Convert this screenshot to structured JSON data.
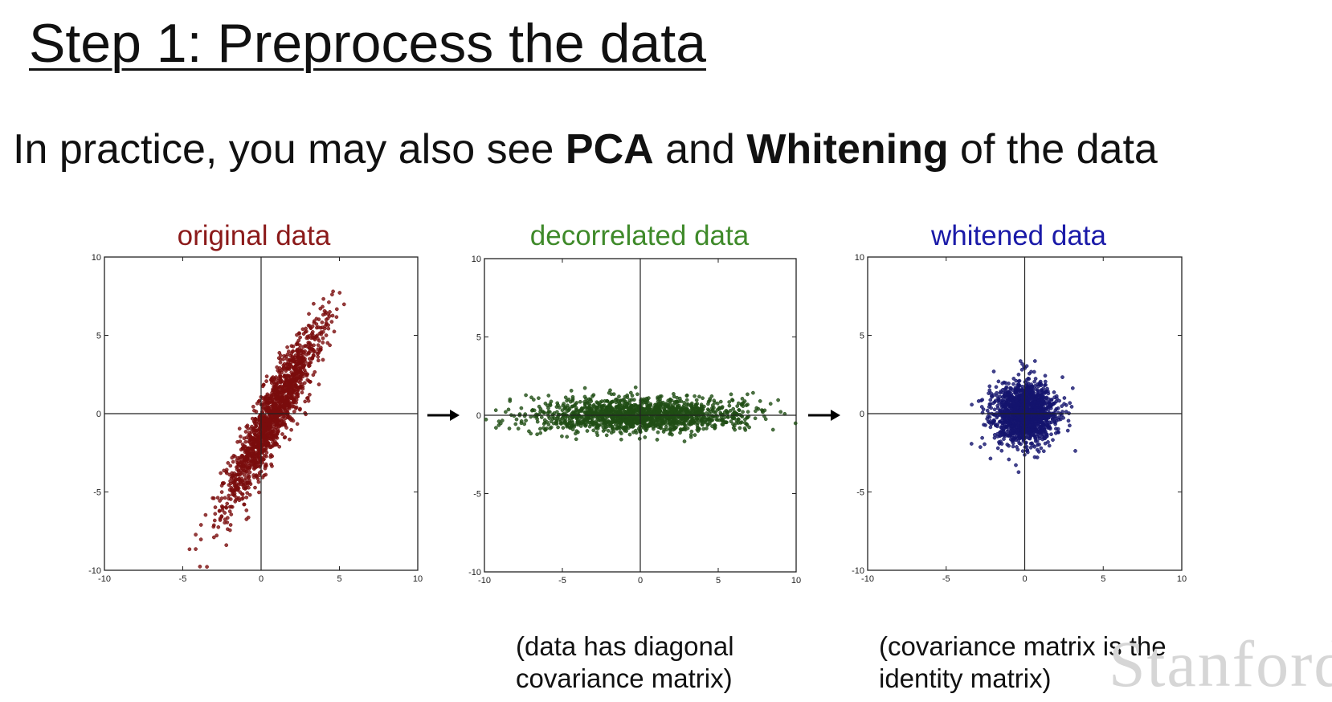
{
  "slide": {
    "title": "Step 1: Preprocess the data",
    "subtitle": {
      "prefix": "In practice, you may also see ",
      "term1": "PCA",
      "middle": " and ",
      "term2": "Whitening",
      "suffix": " of the data"
    },
    "captions": {
      "decorrelated_line1": "(data has diagonal",
      "decorrelated_line2": "covariance matrix)",
      "whitened_line1": "(covariance matrix is the",
      "whitened_line2": "identity matrix)"
    },
    "watermark": "Stanford",
    "icons": {
      "arrow": "right-arrow-icon"
    }
  },
  "chart_data": [
    {
      "type": "scatter",
      "id": "original",
      "title": "original data",
      "title_color": "#8b1a1a",
      "point_color": "#7a0d0d",
      "xlim": [
        -10,
        10
      ],
      "ylim": [
        -10,
        10
      ],
      "xticks": [
        -10,
        -5,
        0,
        5,
        10
      ],
      "yticks": [
        -10,
        -5,
        0,
        5,
        10
      ],
      "axis_lines_at_zero": true,
      "distribution": {
        "mean": [
          0.8,
          0.0
        ],
        "direction_deg": 63,
        "std_major": 3.4,
        "std_minor": 0.55,
        "n": 1500
      }
    },
    {
      "type": "scatter",
      "id": "decorrelated",
      "title": "decorrelated data",
      "title_color": "#3f8a2a",
      "point_color": "#1f4d14",
      "xlim": [
        -10,
        10
      ],
      "ylim": [
        -10,
        10
      ],
      "xticks": [
        -10,
        -5,
        0,
        5,
        10
      ],
      "yticks": [
        -10,
        -5,
        0,
        5,
        10
      ],
      "axis_lines_at_zero": true,
      "distribution": {
        "mean": [
          0.0,
          0.0
        ],
        "direction_deg": 0,
        "std_major": 3.4,
        "std_minor": 0.55,
        "n": 1500
      }
    },
    {
      "type": "scatter",
      "id": "whitened",
      "title": "whitened data",
      "title_color": "#1a1aa8",
      "point_color": "#14146e",
      "xlim": [
        -10,
        10
      ],
      "ylim": [
        -10,
        10
      ],
      "xticks": [
        -10,
        -5,
        0,
        5,
        10
      ],
      "yticks": [
        -10,
        -5,
        0,
        5,
        10
      ],
      "axis_lines_at_zero": true,
      "distribution": {
        "mean": [
          0.0,
          0.0
        ],
        "direction_deg": 0,
        "std_major": 1.0,
        "std_minor": 1.0,
        "n": 1500
      }
    }
  ]
}
